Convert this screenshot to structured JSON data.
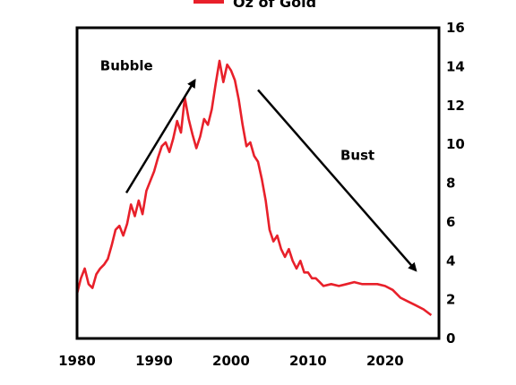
{
  "chart_data": {
    "type": "line",
    "title": "",
    "xlabel": "",
    "ylabel": "",
    "xlim": [
      1980,
      2027
    ],
    "ylim": [
      0,
      16
    ],
    "x_ticks": [
      1980,
      1990,
      2000,
      2010,
      2020
    ],
    "y_ticks": [
      0,
      2,
      4,
      6,
      8,
      10,
      12,
      14,
      16
    ],
    "y_axis_side": "right",
    "grid": false,
    "legend": {
      "position": "top-center",
      "entries": [
        "Oz of Gold"
      ]
    },
    "colors": {
      "series": "#e8202a",
      "axis": "#000000",
      "arrow": "#000000"
    },
    "series": [
      {
        "name": "Oz of Gold",
        "x": [
          1980.0,
          1980.5,
          1981.0,
          1981.5,
          1982.0,
          1982.5,
          1983.0,
          1983.5,
          1984.0,
          1984.5,
          1985.0,
          1985.5,
          1986.0,
          1986.5,
          1987.0,
          1987.5,
          1988.0,
          1988.5,
          1989.0,
          1989.5,
          1990.0,
          1990.5,
          1991.0,
          1991.5,
          1992.0,
          1992.5,
          1993.0,
          1993.5,
          1994.0,
          1994.5,
          1995.0,
          1995.5,
          1996.0,
          1996.5,
          1997.0,
          1997.5,
          1998.0,
          1998.5,
          1999.0,
          1999.5,
          2000.0,
          2000.5,
          2001.0,
          2001.5,
          2002.0,
          2002.5,
          2003.0,
          2003.5,
          2004.0,
          2004.5,
          2005.0,
          2005.5,
          2006.0,
          2006.5,
          2007.0,
          2007.5,
          2008.0,
          2008.5,
          2009.0,
          2009.5,
          2010.0,
          2010.5,
          2011.0,
          2011.5,
          2012.0,
          2013.0,
          2014.0,
          2015.0,
          2016.0,
          2017.0,
          2018.0,
          2019.0,
          2020.0,
          2021.0,
          2022.0,
          2023.0,
          2024.0,
          2025.0,
          2026.0
        ],
        "y": [
          2.3,
          3.1,
          3.6,
          2.8,
          2.6,
          3.3,
          3.6,
          3.8,
          4.1,
          4.8,
          5.6,
          5.8,
          5.3,
          5.9,
          6.9,
          6.3,
          7.1,
          6.4,
          7.6,
          8.1,
          8.6,
          9.3,
          9.9,
          10.1,
          9.6,
          10.3,
          11.2,
          10.6,
          12.4,
          11.3,
          10.5,
          9.8,
          10.4,
          11.3,
          11.0,
          11.8,
          13.1,
          14.3,
          13.2,
          14.1,
          13.8,
          13.3,
          12.3,
          11.0,
          9.9,
          10.1,
          9.4,
          9.1,
          8.2,
          7.1,
          5.6,
          5.0,
          5.3,
          4.6,
          4.2,
          4.6,
          4.0,
          3.6,
          4.0,
          3.4,
          3.4,
          3.1,
          3.1,
          2.9,
          2.7,
          2.8,
          2.7,
          2.8,
          2.9,
          2.8,
          2.8,
          2.8,
          2.7,
          2.5,
          2.1,
          1.9,
          1.7,
          1.5,
          1.2
        ]
      }
    ],
    "annotations": [
      {
        "text": "Bubble",
        "x": 1983.0,
        "y": 13.8
      },
      {
        "text": "Bust",
        "x": 2014.2,
        "y": 9.2
      }
    ],
    "arrows": [
      {
        "x1": 1986.4,
        "y1": 7.5,
        "x2": 1995.3,
        "y2": 13.3
      },
      {
        "x1": 2003.5,
        "y1": 12.8,
        "x2": 2024.0,
        "y2": 3.5
      }
    ]
  }
}
